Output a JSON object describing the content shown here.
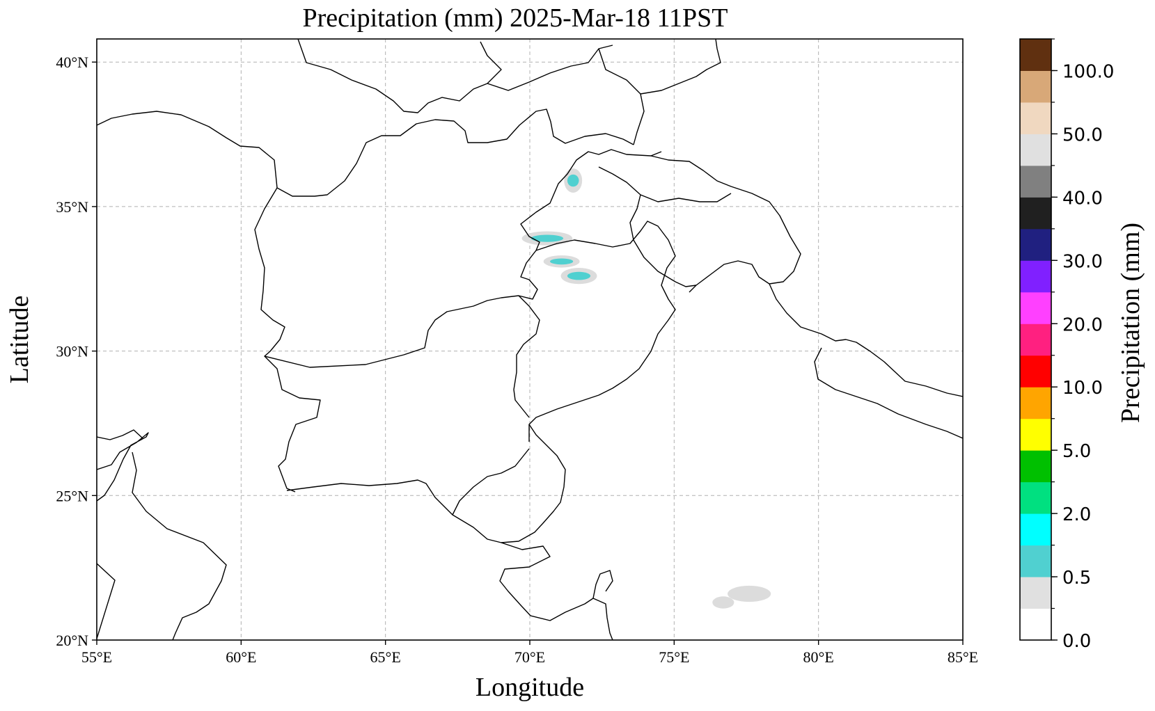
{
  "chart_data": {
    "type": "heatmap",
    "title": "Precipitation (mm)  2025-Mar-18 11PST",
    "xlabel": "Longitude",
    "ylabel": "Latitude",
    "xlim": [
      55,
      85
    ],
    "ylim": [
      20,
      40.8
    ],
    "grid": true,
    "x_ticks": [
      {
        "value": 55,
        "label": "55°E"
      },
      {
        "value": 60,
        "label": "60°E"
      },
      {
        "value": 65,
        "label": "65°E"
      },
      {
        "value": 70,
        "label": "70°E"
      },
      {
        "value": 75,
        "label": "75°E"
      },
      {
        "value": 80,
        "label": "80°E"
      },
      {
        "value": 85,
        "label": "85°E"
      }
    ],
    "y_ticks": [
      {
        "value": 20,
        "label": "20°N"
      },
      {
        "value": 25,
        "label": "25°N"
      },
      {
        "value": 30,
        "label": "30°N"
      },
      {
        "value": 35,
        "label": "35°N"
      },
      {
        "value": 40,
        "label": "40°N"
      }
    ],
    "colorbar": {
      "label": "Precipitation (mm)",
      "colors": [
        "#ffffff",
        "#e0e0e0",
        "#50d0d0",
        "#00ffff",
        "#00e080",
        "#00c000",
        "#ffff00",
        "#ffa500",
        "#ff0000",
        "#ff2080",
        "#ff40ff",
        "#8020ff",
        "#202080",
        "#202020",
        "#808080",
        "#e0e0e0",
        "#f0d8c0",
        "#d8a878",
        "#603010"
      ],
      "tick_labels": [
        "0.0",
        "0.5",
        "2.0",
        "5.0",
        "10.0",
        "20.0",
        "30.0",
        "40.0",
        "50.0",
        "100.0"
      ]
    },
    "precip_areas": [
      {
        "lon": 71.5,
        "lat": 35.9,
        "lon_span": 0.5,
        "lat_span": 0.6,
        "category": "0.5-1"
      },
      {
        "lon": 70.6,
        "lat": 33.9,
        "lon_span": 1.4,
        "lat_span": 0.35,
        "category": "0.5-1"
      },
      {
        "lon": 71.1,
        "lat": 33.1,
        "lon_span": 1.0,
        "lat_span": 0.3,
        "category": "0.5-1"
      },
      {
        "lon": 71.7,
        "lat": 32.6,
        "lon_span": 1.0,
        "lat_span": 0.4,
        "category": "0.5-1"
      },
      {
        "lon": 77.6,
        "lat": 21.6,
        "lon_span": 1.2,
        "lat_span": 0.4,
        "category": "0.1-0.5"
      },
      {
        "lon": 76.7,
        "lat": 21.3,
        "lon_span": 0.6,
        "lat_span": 0.3,
        "category": "0.1-0.5"
      }
    ]
  }
}
